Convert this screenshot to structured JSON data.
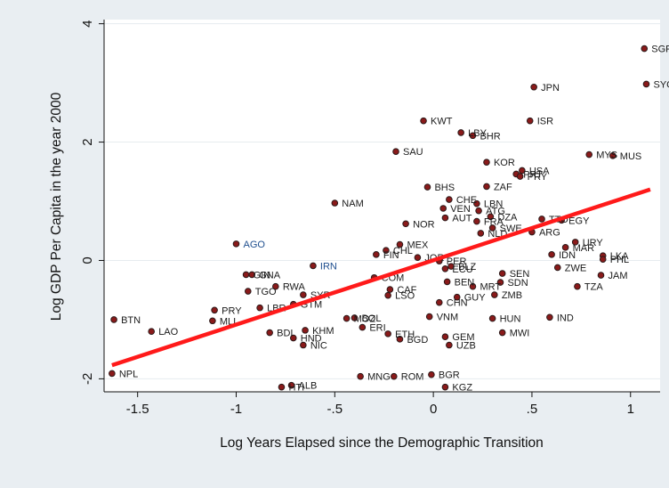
{
  "chart_data": {
    "type": "scatter",
    "title": "",
    "xlabel": "Log Years Elapsed since the Demographic Transition",
    "ylabel": "Log GDP Per Capita in the year 2000",
    "xlim": [
      -1.67,
      1.15
    ],
    "ylim": [
      -2.22,
      4.07
    ],
    "xticks": [
      -1.5,
      -1,
      -0.5,
      0,
      0.5,
      1
    ],
    "xtick_labels": [
      "-1.5",
      "-1",
      "-.5",
      "0",
      ".5",
      "1"
    ],
    "yticks": [
      -2,
      0,
      2,
      4
    ],
    "ytick_labels": [
      "-2",
      "0",
      "2",
      "4"
    ],
    "grid": "horizontal",
    "legend": "none",
    "colors": {
      "background": "#e9eef2",
      "plot_bg": "#ffffff",
      "grid": "#e6ecef",
      "marker_fill": "#8a1a1a",
      "marker_edge": "#2b1a1a",
      "fit_line": "#ff1a1a",
      "highlight_label": "#1f4f8f"
    },
    "fit_line": {
      "x": [
        -1.63,
        1.1
      ],
      "y": [
        -1.77,
        1.2
      ]
    },
    "points": [
      {
        "label": "SGP",
        "x": 1.07,
        "y": 3.58
      },
      {
        "label": "SYC",
        "x": 1.08,
        "y": 2.98
      },
      {
        "label": "JPN",
        "x": 0.51,
        "y": 2.93
      },
      {
        "label": "KWT",
        "x": -0.05,
        "y": 2.36
      },
      {
        "label": "ISR",
        "x": 0.49,
        "y": 2.36
      },
      {
        "label": "LBY",
        "x": 0.14,
        "y": 2.16
      },
      {
        "label": "BHR",
        "x": 0.2,
        "y": 2.11
      },
      {
        "label": "MYS",
        "x": 0.79,
        "y": 1.79
      },
      {
        "label": "MUS",
        "x": 0.91,
        "y": 1.77
      },
      {
        "label": "SAU",
        "x": -0.19,
        "y": 1.84
      },
      {
        "label": "KOR",
        "x": 0.27,
        "y": 1.66
      },
      {
        "label": "USA",
        "x": 0.45,
        "y": 1.52
      },
      {
        "label": "PRT",
        "x": 0.42,
        "y": 1.46
      },
      {
        "label": "PRY2",
        "x": 0.44,
        "y": 1.42
      },
      {
        "label": "BHS",
        "x": -0.03,
        "y": 1.24
      },
      {
        "label": "ZAF",
        "x": 0.27,
        "y": 1.25
      },
      {
        "label": "CHE",
        "x": 0.08,
        "y": 1.03
      },
      {
        "label": "LBN",
        "x": 0.22,
        "y": 0.96
      },
      {
        "label": "NAM",
        "x": -0.5,
        "y": 0.97
      },
      {
        "label": "VEN",
        "x": 0.05,
        "y": 0.88
      },
      {
        "label": "ATG",
        "x": 0.23,
        "y": 0.84
      },
      {
        "label": "DZA",
        "x": 0.29,
        "y": 0.74
      },
      {
        "label": "AUT",
        "x": 0.06,
        "y": 0.72
      },
      {
        "label": "FRA",
        "x": 0.22,
        "y": 0.66
      },
      {
        "label": "NOR",
        "x": -0.14,
        "y": 0.62
      },
      {
        "label": "TTO",
        "x": 0.55,
        "y": 0.7
      },
      {
        "label": "EGY",
        "x": 0.65,
        "y": 0.68
      },
      {
        "label": "ARG",
        "x": 0.5,
        "y": 0.48
      },
      {
        "label": "SWE",
        "x": 0.3,
        "y": 0.55
      },
      {
        "label": "NLD",
        "x": 0.24,
        "y": 0.46
      },
      {
        "label": "AGO",
        "x": -1.0,
        "y": 0.28,
        "highlight": true
      },
      {
        "label": "IRN",
        "x": -0.61,
        "y": -0.09,
        "highlight": true
      },
      {
        "label": "MEX",
        "x": -0.17,
        "y": 0.27
      },
      {
        "label": "CHL",
        "x": -0.24,
        "y": 0.17
      },
      {
        "label": "FIN",
        "x": -0.29,
        "y": 0.1
      },
      {
        "label": "JOR",
        "x": -0.08,
        "y": 0.05
      },
      {
        "label": "PER",
        "x": 0.03,
        "y": -0.01
      },
      {
        "label": "ECU",
        "x": 0.06,
        "y": -0.14
      },
      {
        "label": "BLZ",
        "x": 0.09,
        "y": -0.1
      },
      {
        "label": "URY",
        "x": 0.72,
        "y": 0.31
      },
      {
        "label": "MAR",
        "x": 0.67,
        "y": 0.22
      },
      {
        "label": "IDN",
        "x": 0.6,
        "y": 0.1
      },
      {
        "label": "LKA",
        "x": 0.86,
        "y": 0.08
      },
      {
        "label": "PHL",
        "x": 0.86,
        "y": 0.02
      },
      {
        "label": "ZWE",
        "x": 0.63,
        "y": -0.12
      },
      {
        "label": "JAM",
        "x": 0.85,
        "y": -0.25
      },
      {
        "label": "TZA",
        "x": 0.73,
        "y": -0.44
      },
      {
        "label": "SEN",
        "x": 0.35,
        "y": -0.22
      },
      {
        "label": "SDN",
        "x": 0.34,
        "y": -0.37
      },
      {
        "label": "BEN",
        "x": 0.07,
        "y": -0.36
      },
      {
        "label": "MRT",
        "x": 0.2,
        "y": -0.44
      },
      {
        "label": "ZMB",
        "x": 0.31,
        "y": -0.58
      },
      {
        "label": "GUY",
        "x": 0.12,
        "y": -0.62
      },
      {
        "label": "CHN",
        "x": 0.03,
        "y": -0.71
      },
      {
        "label": "COM",
        "x": -0.3,
        "y": -0.29
      },
      {
        "label": "CAF",
        "x": -0.22,
        "y": -0.49
      },
      {
        "label": "LSO",
        "x": -0.23,
        "y": -0.59
      },
      {
        "label": "GIN",
        "x": -0.95,
        "y": -0.24
      },
      {
        "label": "GNA",
        "x": -0.92,
        "y": -0.24
      },
      {
        "label": "TGO",
        "x": -0.94,
        "y": -0.52
      },
      {
        "label": "RWA",
        "x": -0.8,
        "y": -0.44
      },
      {
        "label": "SYR",
        "x": -0.66,
        "y": -0.58
      },
      {
        "label": "GTM",
        "x": -0.71,
        "y": -0.74
      },
      {
        "label": "LBR",
        "x": -0.88,
        "y": -0.8
      },
      {
        "label": "PRY",
        "x": -1.11,
        "y": -0.84
      },
      {
        "label": "MLI",
        "x": -1.12,
        "y": -1.02
      },
      {
        "label": "BTN",
        "x": -1.62,
        "y": -1.0
      },
      {
        "label": "LAO",
        "x": -1.43,
        "y": -1.2
      },
      {
        "label": "MOZ",
        "x": -0.44,
        "y": -0.98
      },
      {
        "label": "BOL",
        "x": -0.4,
        "y": -0.97
      },
      {
        "label": "ERI",
        "x": -0.36,
        "y": -1.13
      },
      {
        "label": "KHM",
        "x": -0.65,
        "y": -1.18
      },
      {
        "label": "BDI",
        "x": -0.83,
        "y": -1.22
      },
      {
        "label": "HND",
        "x": -0.71,
        "y": -1.31
      },
      {
        "label": "NIC",
        "x": -0.66,
        "y": -1.43
      },
      {
        "label": "ETH",
        "x": -0.23,
        "y": -1.24
      },
      {
        "label": "BGD",
        "x": -0.17,
        "y": -1.33
      },
      {
        "label": "VNM",
        "x": -0.02,
        "y": -0.95
      },
      {
        "label": "HUN",
        "x": 0.3,
        "y": -0.98
      },
      {
        "label": "IND",
        "x": 0.59,
        "y": -0.96
      },
      {
        "label": "MWI",
        "x": 0.35,
        "y": -1.22
      },
      {
        "label": "GEM",
        "x": 0.06,
        "y": -1.29
      },
      {
        "label": "UZB",
        "x": 0.08,
        "y": -1.43
      },
      {
        "label": "NPL",
        "x": -1.63,
        "y": -1.91
      },
      {
        "label": "MNG",
        "x": -0.37,
        "y": -1.96
      },
      {
        "label": "ROM",
        "x": -0.2,
        "y": -1.96
      },
      {
        "label": "BGR",
        "x": -0.01,
        "y": -1.93
      },
      {
        "label": "ALB",
        "x": -0.72,
        "y": -2.11
      },
      {
        "label": "HTI",
        "x": -0.77,
        "y": -2.14
      },
      {
        "label": "KGZ",
        "x": 0.06,
        "y": -2.14
      }
    ]
  }
}
